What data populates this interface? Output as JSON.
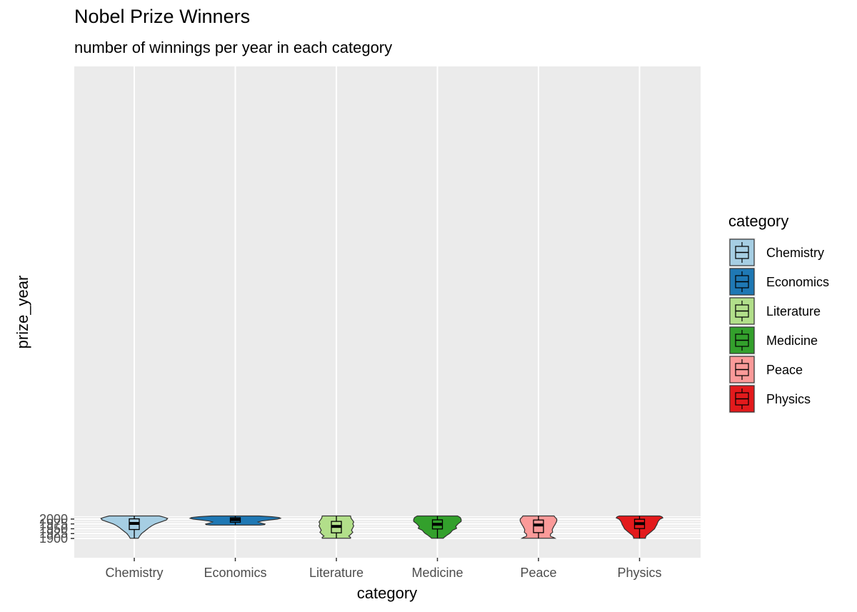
{
  "chart_data": {
    "type": "violin",
    "title": "Nobel Prize Winners",
    "subtitle": "number of winnings per year in each category",
    "xlabel": "category",
    "ylabel": "prize_year",
    "ylim": [
      1898,
      2018
    ],
    "yticks": [
      1900,
      1925,
      1950,
      1975,
      2000
    ],
    "grid": true,
    "legend_title": "category",
    "legend_position": "right",
    "categories": [
      "Chemistry",
      "Economics",
      "Literature",
      "Medicine",
      "Peace",
      "Physics"
    ],
    "colors": [
      "#A6CEE3",
      "#1F78B4",
      "#B2DF8A",
      "#33A02C",
      "#FB9A99",
      "#E31A1C"
    ],
    "series": [
      {
        "name": "Chemistry",
        "min": 1901,
        "max": 2016,
        "q1": 1946,
        "median": 1977.5,
        "q3": 2001,
        "density": [
          [
            1901,
            0.09
          ],
          [
            1910,
            0.11
          ],
          [
            1925,
            0.16
          ],
          [
            1940,
            0.24
          ],
          [
            1955,
            0.32
          ],
          [
            1965,
            0.38
          ],
          [
            1975,
            0.46
          ],
          [
            1985,
            0.58
          ],
          [
            1995,
            0.7
          ],
          [
            2003,
            0.73
          ],
          [
            2009,
            0.66
          ],
          [
            2016,
            0.55
          ]
        ]
      },
      {
        "name": "Economics",
        "min": 1969,
        "max": 2016,
        "q1": 1983.5,
        "median": 1997,
        "q3": 2007,
        "density": [
          [
            1969,
            0.55
          ],
          [
            1971,
            0.64
          ],
          [
            1974,
            0.65
          ],
          [
            1980,
            0.55
          ],
          [
            1985,
            0.5
          ],
          [
            1990,
            0.58
          ],
          [
            1995,
            0.75
          ],
          [
            2000,
            0.92
          ],
          [
            2004,
            0.99
          ],
          [
            2008,
            0.96
          ],
          [
            2012,
            0.8
          ],
          [
            2016,
            0.52
          ]
        ]
      },
      {
        "name": "Literature",
        "min": 1901,
        "max": 2016,
        "q1": 1929,
        "median": 1962,
        "q3": 1988,
        "density": [
          [
            1901,
            0.31
          ],
          [
            1906,
            0.31
          ],
          [
            1912,
            0.27
          ],
          [
            1920,
            0.31
          ],
          [
            1932,
            0.36
          ],
          [
            1942,
            0.33
          ],
          [
            1955,
            0.36
          ],
          [
            1965,
            0.38
          ],
          [
            1975,
            0.36
          ],
          [
            1985,
            0.38
          ],
          [
            1995,
            0.35
          ],
          [
            2005,
            0.32
          ],
          [
            2016,
            0.31
          ]
        ]
      },
      {
        "name": "Medicine",
        "min": 1901,
        "max": 2016,
        "q1": 1949,
        "median": 1973,
        "q3": 1996,
        "density": [
          [
            1901,
            0.13
          ],
          [
            1906,
            0.15
          ],
          [
            1915,
            0.2
          ],
          [
            1928,
            0.28
          ],
          [
            1942,
            0.33
          ],
          [
            1952,
            0.42
          ],
          [
            1962,
            0.4
          ],
          [
            1975,
            0.45
          ],
          [
            1988,
            0.52
          ],
          [
            1998,
            0.52
          ],
          [
            2008,
            0.5
          ],
          [
            2016,
            0.44
          ]
        ]
      },
      {
        "name": "Peace",
        "min": 1901,
        "max": 2016,
        "q1": 1930,
        "median": 1969.5,
        "q3": 1995,
        "density": [
          [
            1901,
            0.36
          ],
          [
            1905,
            0.33
          ],
          [
            1912,
            0.26
          ],
          [
            1922,
            0.26
          ],
          [
            1932,
            0.31
          ],
          [
            1945,
            0.3
          ],
          [
            1960,
            0.33
          ],
          [
            1975,
            0.37
          ],
          [
            1990,
            0.4
          ],
          [
            2000,
            0.4
          ],
          [
            2010,
            0.36
          ],
          [
            2016,
            0.34
          ]
        ]
      },
      {
        "name": "Physics",
        "min": 1901,
        "max": 2016,
        "q1": 1951,
        "median": 1976.5,
        "q3": 1999,
        "density": [
          [
            1901,
            0.13
          ],
          [
            1906,
            0.13
          ],
          [
            1915,
            0.15
          ],
          [
            1928,
            0.22
          ],
          [
            1940,
            0.28
          ],
          [
            1950,
            0.33
          ],
          [
            1960,
            0.35
          ],
          [
            1972,
            0.38
          ],
          [
            1985,
            0.4
          ],
          [
            1998,
            0.44
          ],
          [
            2006,
            0.51
          ],
          [
            2012,
            0.49
          ],
          [
            2016,
            0.44
          ]
        ]
      }
    ]
  }
}
